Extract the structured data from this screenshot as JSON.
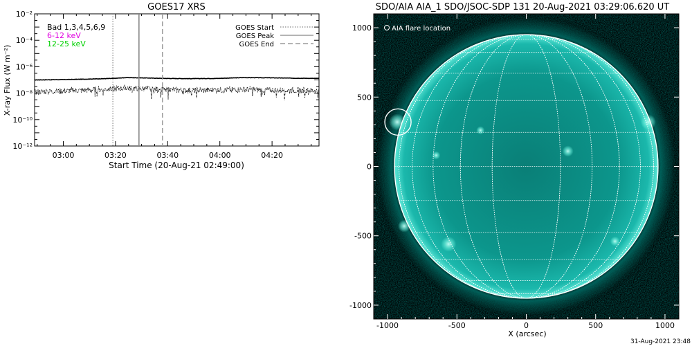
{
  "chart_data": [
    {
      "type": "line",
      "title": "GOES17 XRS",
      "xlabel": "Start Time (20-Aug-21 02:49:00)",
      "ylabel": "X-ray Flux (W m⁻²)",
      "x_tick_labels": [
        "03:00",
        "03:20",
        "03:40",
        "04:00",
        "04:20"
      ],
      "x_ticks_minutes_after_start": [
        11,
        31,
        51,
        71,
        91
      ],
      "xlim_minutes_after_start": [
        0,
        109
      ],
      "y_scale": "log",
      "ylim": [
        1e-12,
        0.01
      ],
      "y_tick_labels": [
        "10⁻¹²",
        "10⁻¹⁰",
        "10⁻⁸",
        "10⁻⁶",
        "10⁻⁴",
        "10⁻²"
      ],
      "y_tick_values": [
        1e-12,
        1e-10,
        1e-08,
        1e-06,
        0.0001,
        0.01
      ],
      "legend_position": "top-right",
      "text_legend": [
        {
          "text": "Bad 1,3,4,5,6,9",
          "color": "#000000"
        },
        {
          "text": "6-12 keV",
          "color": "#e000e0"
        },
        {
          "text": "12-25 keV",
          "color": "#00d000"
        }
      ],
      "series": [
        {
          "channel": "long",
          "style": "solid",
          "color": "#000000",
          "x": [
            0,
            10,
            20,
            30,
            35,
            40,
            50,
            60,
            70,
            80,
            90,
            100,
            109
          ],
          "y": [
            1e-07,
            1.05e-07,
            1.15e-07,
            1.3e-07,
            1.5e-07,
            1.45e-07,
            1.3e-07,
            1.25e-07,
            1.3e-07,
            1.5e-07,
            1.45e-07,
            1.35e-07,
            1.3e-07
          ]
        },
        {
          "channel": "short",
          "style": "dotted",
          "color": "#000000",
          "x": [
            0,
            10,
            20,
            30,
            35,
            40,
            50,
            60,
            70,
            80,
            90,
            100,
            109
          ],
          "y": [
            1.3e-08,
            1.5e-08,
            1.8e-08,
            2.2e-08,
            2.6e-08,
            2.3e-08,
            1.9e-08,
            1.7e-08,
            1.8e-08,
            2e-08,
            1.8e-08,
            1.7e-08,
            1.6e-08
          ]
        }
      ],
      "markers": [
        {
          "label": "GOES Start",
          "style": "dotted",
          "x": 30
        },
        {
          "label": "GOES Peak",
          "style": "solid",
          "x": 40
        },
        {
          "label": "GOES End",
          "style": "dashed",
          "x": 49
        }
      ]
    },
    {
      "type": "scatter",
      "title": "SDO/AIA AIA_1 SDO/JSOC-SDP 131 20-Aug-2021 03:29:06.620 UT",
      "xlabel": "X (arcsec)",
      "ylabel": "",
      "xlim": [
        -1100,
        1100
      ],
      "ylim": [
        -1100,
        1100
      ],
      "x_ticks": [
        -1000,
        -500,
        0,
        500,
        1000
      ],
      "y_ticks": [
        -1000,
        -500,
        0,
        500,
        1000
      ],
      "solar_radius_arcsec": 950,
      "grid_spacing_deg": 15,
      "legend": "AIA flare location",
      "flare_location": {
        "x": -925,
        "y": 320
      },
      "colors": {
        "disk": "#0b8f86",
        "bright": "#6ff4e0",
        "corona": "#00706a",
        "background": "#000000"
      },
      "footer": "31-Aug-2021 23:48"
    }
  ]
}
